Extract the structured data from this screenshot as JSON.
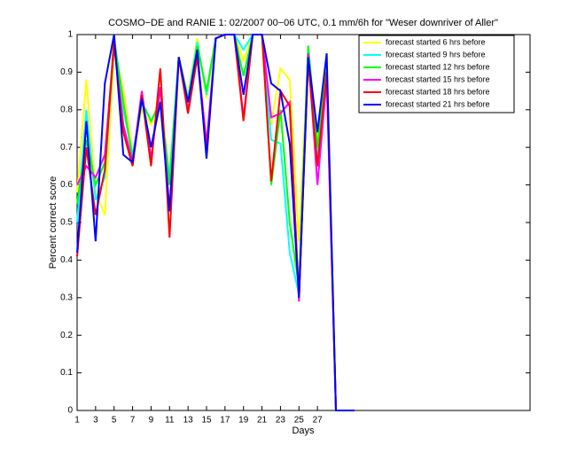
{
  "chart_data": {
    "type": "line",
    "title": "COSMO−DE and RANIE 1: 02/2007 00−06 UTC, 0.1 mm/6h for \"Weser downriver of Aller\"",
    "xlabel": "Days",
    "ylabel": "Percent correct score",
    "x": [
      1,
      2,
      3,
      4,
      5,
      6,
      7,
      8,
      9,
      10,
      11,
      12,
      13,
      14,
      15,
      16,
      17,
      18,
      19,
      20,
      21,
      22,
      23,
      24,
      25,
      26,
      27,
      28,
      29,
      30,
      31
    ],
    "xlim": [
      1,
      50
    ],
    "ylim": [
      0,
      1
    ],
    "xticks": [
      1,
      3,
      5,
      7,
      9,
      11,
      13,
      15,
      17,
      19,
      21,
      23,
      25,
      27
    ],
    "yticks": [
      0,
      0.1,
      0.2,
      0.3,
      0.4,
      0.5,
      0.6,
      0.7,
      0.8,
      0.9,
      1
    ],
    "legend": "upper right",
    "series": [
      {
        "name": "forecast started 6 hrs before",
        "color": "#ffff00",
        "values": [
          0.58,
          0.88,
          0.58,
          0.52,
          0.96,
          0.85,
          0.68,
          0.8,
          0.76,
          0.84,
          0.63,
          0.94,
          0.84,
          0.99,
          0.83,
          0.99,
          1.0,
          1.0,
          0.93,
          1.0,
          1.0,
          0.76,
          0.91,
          0.88,
          0.45,
          0.96,
          0.72,
          0.94,
          0,
          0,
          0
        ]
      },
      {
        "name": "forecast started 9 hrs before",
        "color": "#00ffff",
        "values": [
          0.5,
          0.8,
          0.56,
          0.62,
          0.98,
          0.8,
          0.68,
          0.82,
          0.77,
          0.82,
          0.62,
          0.94,
          0.83,
          0.98,
          0.84,
          0.99,
          1.0,
          1.0,
          0.96,
          1.0,
          1.0,
          0.72,
          0.71,
          0.42,
          0.31,
          0.97,
          0.68,
          0.93,
          0,
          0,
          0
        ]
      },
      {
        "name": "forecast started 12 hrs before",
        "color": "#00ff00",
        "values": [
          0.55,
          0.72,
          0.6,
          0.66,
          0.99,
          0.82,
          0.67,
          0.82,
          0.77,
          0.82,
          0.6,
          0.94,
          0.82,
          0.97,
          0.85,
          0.99,
          1.0,
          1.0,
          0.89,
          1.0,
          1.0,
          0.6,
          0.8,
          0.5,
          0.33,
          0.97,
          0.7,
          0.92,
          0,
          0,
          0
        ]
      },
      {
        "name": "forecast started 15 hrs before",
        "color": "#ff00ff",
        "values": [
          0.6,
          0.65,
          0.62,
          0.68,
          0.97,
          0.76,
          0.66,
          0.85,
          0.67,
          0.86,
          0.53,
          0.94,
          0.8,
          0.95,
          0.71,
          0.99,
          1.0,
          1.0,
          0.78,
          1.0,
          1.0,
          0.78,
          0.79,
          0.82,
          0.29,
          0.95,
          0.6,
          0.88,
          0,
          0,
          0
        ]
      },
      {
        "name": "forecast started 18 hrs before",
        "color": "#ff0000",
        "values": [
          0.41,
          0.7,
          0.52,
          0.64,
          0.98,
          0.74,
          0.65,
          0.84,
          0.65,
          0.91,
          0.46,
          0.94,
          0.79,
          0.94,
          0.69,
          0.99,
          1.0,
          1.0,
          0.77,
          1.0,
          1.0,
          0.61,
          0.85,
          0.81,
          0.3,
          0.93,
          0.65,
          0.9,
          0,
          0,
          0
        ]
      },
      {
        "name": "forecast started 21 hrs before",
        "color": "#0000ff",
        "values": [
          0.42,
          0.77,
          0.45,
          0.87,
          1.0,
          0.68,
          0.66,
          0.83,
          0.7,
          0.82,
          0.53,
          0.94,
          0.82,
          0.96,
          0.67,
          0.99,
          1.0,
          1.0,
          0.84,
          1.0,
          1.0,
          0.87,
          0.85,
          0.71,
          0.3,
          0.94,
          0.74,
          0.95,
          0,
          0,
          0
        ]
      }
    ]
  }
}
